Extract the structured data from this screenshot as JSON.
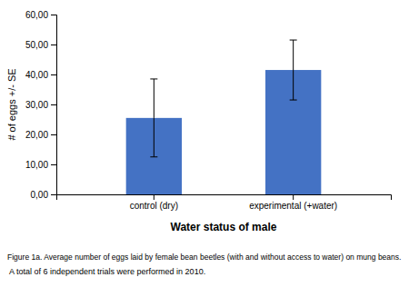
{
  "chart_data": {
    "type": "bar",
    "categories": [
      "control (dry)",
      "experimental (+water)"
    ],
    "values": [
      25.5,
      41.5
    ],
    "errors_upper": [
      13.0,
      10.0
    ],
    "errors_lower": [
      13.0,
      10.0
    ],
    "color": "#4472C4",
    "ylim": [
      0,
      60
    ],
    "yticks": [
      {
        "value": 0,
        "label": "0,00"
      },
      {
        "value": 10,
        "label": "10,00"
      },
      {
        "value": 20,
        "label": "20,00"
      },
      {
        "value": 30,
        "label": "30,00"
      },
      {
        "value": 40,
        "label": "40,00"
      },
      {
        "value": 50,
        "label": "50,00"
      },
      {
        "value": 60,
        "label": "60,00"
      }
    ],
    "ylabel": "# of eggs +/- SE",
    "xlabel": "Water status of male",
    "annotations": [
      "Figure 1a. Average number of eggs laid by female bean beetles (with and without access to water) on mung beans.",
      " A total of 6 independent trials were performed in 2010."
    ],
    "grid": false
  }
}
